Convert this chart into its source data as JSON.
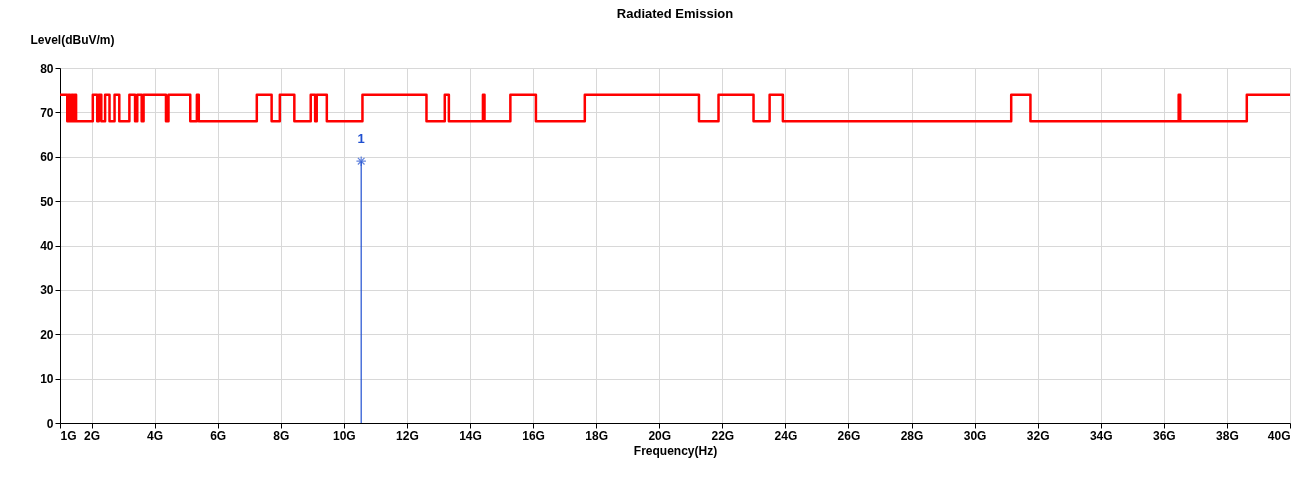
{
  "chart_data": {
    "type": "step",
    "title": "Radiated Emission",
    "xlabel": "Frequency(Hz)",
    "ylabel": "Level(dBuV/m)",
    "xlim": [
      1,
      40
    ],
    "ylim": [
      0,
      80
    ],
    "xticks": [
      {
        "value": 1,
        "label": "1G"
      },
      {
        "value": 2,
        "label": "2G"
      },
      {
        "value": 4,
        "label": "4G"
      },
      {
        "value": 6,
        "label": "6G"
      },
      {
        "value": 8,
        "label": "8G"
      },
      {
        "value": 10,
        "label": "10G"
      },
      {
        "value": 12,
        "label": "12G"
      },
      {
        "value": 14,
        "label": "14G"
      },
      {
        "value": 16,
        "label": "16G"
      },
      {
        "value": 18,
        "label": "18G"
      },
      {
        "value": 20,
        "label": "20G"
      },
      {
        "value": 22,
        "label": "22G"
      },
      {
        "value": 24,
        "label": "24G"
      },
      {
        "value": 26,
        "label": "26G"
      },
      {
        "value": 28,
        "label": "28G"
      },
      {
        "value": 30,
        "label": "30G"
      },
      {
        "value": 32,
        "label": "32G"
      },
      {
        "value": 34,
        "label": "34G"
      },
      {
        "value": 36,
        "label": "36G"
      },
      {
        "value": 38,
        "label": "38G"
      },
      {
        "value": 40,
        "label": "40G"
      }
    ],
    "yticks": [
      0,
      10,
      20,
      30,
      40,
      50,
      60,
      70,
      80
    ],
    "grid": true,
    "annotations": [
      {
        "text": "1",
        "x": 10.55,
        "y": 59
      }
    ],
    "series": [
      {
        "color": "#ff0000",
        "line_style": "solid",
        "x": [
          1.0,
          1.23,
          1.27,
          1.32,
          1.37,
          1.42,
          1.46,
          1.51,
          2.04,
          2.18,
          2.23,
          2.31,
          2.43,
          2.57,
          2.73,
          2.88,
          3.2,
          3.38,
          3.45,
          3.59,
          3.65,
          4.36,
          4.44,
          5.13,
          5.34,
          5.4,
          7.24,
          7.71,
          7.97,
          8.43,
          8.95,
          9.09,
          9.14,
          9.46,
          10.59,
          12.62,
          13.2,
          13.33,
          14.41,
          14.46,
          15.28,
          16.09,
          17.64,
          21.26,
          21.88,
          22.99,
          23.5,
          23.92,
          31.16,
          31.77,
          36.47,
          36.52,
          38.63,
          40
        ],
        "values": [
          74,
          68,
          74,
          68,
          74,
          68,
          74,
          68,
          74,
          68,
          74,
          68,
          74,
          68,
          74,
          68,
          74,
          68,
          74,
          68,
          74,
          68,
          74,
          68,
          74,
          68,
          74,
          68,
          74,
          68,
          74,
          68,
          74,
          68,
          74,
          68,
          74,
          68,
          74,
          68,
          74,
          68,
          74,
          68,
          74,
          68,
          74,
          68,
          74,
          68,
          74,
          68,
          74,
          74
        ]
      },
      {
        "type": "lollipop",
        "color": "#1f4fd0",
        "marker": "cross",
        "x": [
          10.55
        ],
        "values": [
          59
        ]
      }
    ]
  }
}
